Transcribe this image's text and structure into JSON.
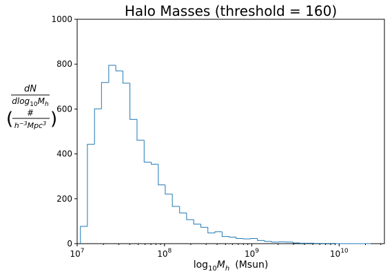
{
  "chart_data": {
    "type": "bar",
    "title": "Halo Masses (threshold = 160)",
    "xlabel": "log10Mh  (Msun)",
    "ylabel": "dN/dlog10Mh (#/h^-3Mpc^3)",
    "x_scale": "log",
    "xlim": [
      10000000.0,
      33000000000.0
    ],
    "ylim": [
      0,
      1000
    ],
    "y_ticks": [
      0,
      200,
      400,
      600,
      800,
      1000
    ],
    "x_ticks": [
      "10^7",
      "10^8",
      "10^9",
      "10^10"
    ],
    "grid": false,
    "series": [
      {
        "color": "#1f77b4",
        "bin_edges": [
          10900000.0,
          13100000.0,
          15800000.0,
          19000000.0,
          23000000.0,
          27700000.0,
          33400000.0,
          40200000.0,
          48500000.0,
          58500000.0,
          70500000.0,
          85000000.0,
          102000000.0,
          123000000.0,
          149000000.0,
          179000000.0,
          216000000.0,
          261000000.0,
          314000000.0,
          379000000.0,
          457000000.0,
          550000000.0,
          663000000.0,
          800000000.0,
          964000000.0,
          1160000000.0,
          1400000000.0,
          1690000000.0,
          2040000000.0,
          2450000000.0,
          2960000000.0,
          3570000000.0,
          4300000000.0,
          5180000000.0,
          6250000000.0,
          7530000000.0,
          9080000000.0,
          10900000000.0,
          13200000000.0,
          15900000000.0,
          19200000000.0,
          23100000000.0
        ],
        "counts": [
          77,
          443,
          601,
          718,
          795,
          770,
          715,
          554,
          461,
          363,
          354,
          262,
          221,
          166,
          137,
          107,
          87,
          73,
          48,
          53,
          32,
          29,
          23,
          21,
          23,
          14,
          10,
          7,
          8,
          7,
          3,
          2,
          2,
          1,
          1,
          1,
          0,
          0,
          0,
          0,
          0
        ]
      }
    ]
  },
  "text": {
    "title": "Halo Masses (threshold = 160)",
    "y_tick_labels": [
      "0",
      "200",
      "400",
      "600",
      "800",
      "1000"
    ],
    "x_tick_base": "10",
    "x_tick_exps": [
      "7",
      "8",
      "9",
      "10"
    ],
    "xlabel_log": "log",
    "xlabel_sub": "10",
    "xlabel_M": "M",
    "xlabel_h": "h",
    "xlabel_unit": "(Msun)",
    "ylabel_dN": "dN",
    "ylabel_dlog": "dlog",
    "ylabel_sub10": "10",
    "ylabel_M": "M",
    "ylabel_h": "h",
    "ylabel_hash": "#",
    "ylabel_h2": "h",
    "ylabel_exp": "−3",
    "ylabel_mpc": "Mpc",
    "ylabel_exp3": "3"
  }
}
